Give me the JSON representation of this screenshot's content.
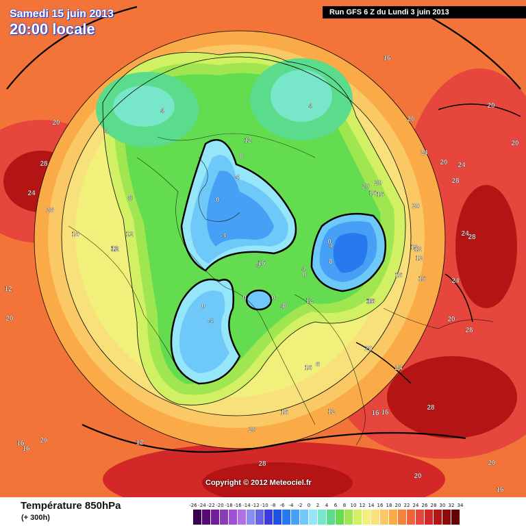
{
  "header": {
    "date": "Samedi 15 juin 2013",
    "time": "20:00 locale",
    "run": "Run GFS 6 Z du Lundi 3 juin 2013"
  },
  "map": {
    "copyright": "Copyright © 2012 Meteociel.fr",
    "contour_labels": [
      {
        "text": "20"
      },
      {
        "text": "28"
      },
      {
        "text": "24"
      },
      {
        "text": "28"
      },
      {
        "text": "16"
      },
      {
        "text": "4"
      },
      {
        "text": "4"
      },
      {
        "text": "4"
      },
      {
        "text": "12"
      },
      {
        "text": "8"
      },
      {
        "text": "-4"
      },
      {
        "text": "0"
      },
      {
        "text": "8"
      },
      {
        "text": "12"
      },
      {
        "text": "12"
      },
      {
        "text": "16"
      },
      {
        "text": "-4"
      },
      {
        "text": "4"
      },
      {
        "text": "0"
      },
      {
        "text": "4"
      },
      {
        "text": "0"
      },
      {
        "text": "0"
      },
      {
        "text": "0"
      },
      {
        "text": "4"
      },
      {
        "text": "8"
      },
      {
        "text": "4"
      },
      {
        "text": "-4"
      },
      {
        "text": "0"
      },
      {
        "text": "12"
      },
      {
        "text": "12"
      },
      {
        "text": "16"
      },
      {
        "text": "16"
      },
      {
        "text": "20"
      },
      {
        "text": "20"
      },
      {
        "text": "16"
      },
      {
        "text": "20"
      },
      {
        "text": "20"
      },
      {
        "text": "20"
      },
      {
        "text": "24"
      },
      {
        "text": "20"
      },
      {
        "text": "24"
      },
      {
        "text": "28"
      },
      {
        "text": "24"
      },
      {
        "text": "24"
      },
      {
        "text": "28"
      },
      {
        "text": "20"
      },
      {
        "text": "20"
      },
      {
        "text": "24"
      },
      {
        "text": "28"
      },
      {
        "text": "16"
      },
      {
        "text": "16"
      },
      {
        "text": "12"
      },
      {
        "text": "20"
      },
      {
        "text": "28"
      },
      {
        "text": "20"
      },
      {
        "text": "28"
      },
      {
        "text": "20"
      },
      {
        "text": "16"
      },
      {
        "text": "16"
      },
      {
        "text": "16"
      },
      {
        "text": "20"
      },
      {
        "text": "12"
      },
      {
        "text": "20"
      },
      {
        "text": "16"
      },
      {
        "text": "16"
      },
      {
        "text": "8"
      },
      {
        "text": "12"
      },
      {
        "text": "16"
      },
      {
        "text": "12"
      },
      {
        "text": "20"
      },
      {
        "text": "12"
      },
      {
        "text": "8"
      },
      {
        "text": "16"
      },
      {
        "text": "8"
      },
      {
        "text": "12"
      },
      {
        "text": "16"
      },
      {
        "text": "16"
      }
    ]
  },
  "legend": {
    "title": "Température 850hPa",
    "subtitle": "(+ 300h)",
    "ticks": [
      "-26",
      "-24",
      "-22",
      "-20",
      "-18",
      "-16",
      "-14",
      "-12",
      "-10",
      "-8",
      "-6",
      "-4",
      "-2",
      "0",
      "2",
      "4",
      "6",
      "8",
      "10",
      "12",
      "14",
      "16",
      "18",
      "20",
      "22",
      "24",
      "26",
      "28",
      "30",
      "32",
      "34"
    ],
    "colors": [
      "#3a0050",
      "#5a0a78",
      "#6e1e96",
      "#8a3cb4",
      "#a050d2",
      "#b46ee6",
      "#8c8cf0",
      "#6464e6",
      "#3c3cdc",
      "#1e50e6",
      "#2878f0",
      "#46a0f5",
      "#6ec8f8",
      "#96e6fa",
      "#78e6c8",
      "#5adc8c",
      "#64dc50",
      "#a0e650",
      "#d2f064",
      "#f0f07a",
      "#f8e07a",
      "#fac864",
      "#faaa46",
      "#f5823c",
      "#f0643c",
      "#e6463c",
      "#d22828",
      "#b41414",
      "#8c0a0a",
      "#640000"
    ]
  }
}
